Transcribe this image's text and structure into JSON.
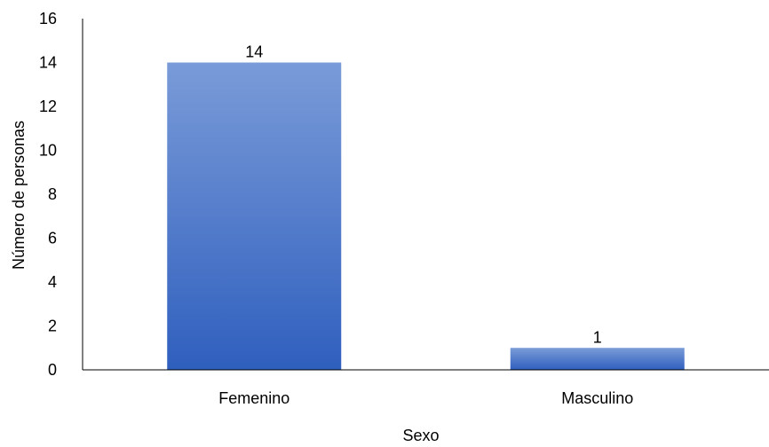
{
  "chart_data": {
    "type": "bar",
    "categories": [
      "Femenino",
      "Masculino"
    ],
    "values": [
      14,
      1
    ],
    "data_labels": [
      "14",
      "1"
    ],
    "title": "",
    "xlabel": "Sexo",
    "ylabel": "Número de personas",
    "ylim": [
      0,
      16
    ],
    "yticks": [
      "0",
      "2",
      "4",
      "6",
      "8",
      "10",
      "12",
      "14",
      "16"
    ],
    "grid": false,
    "legend": "none",
    "colors": {
      "bar_top": "#7a9bd8",
      "bar_bottom": "#2f5fbe",
      "axis": "#000000"
    }
  }
}
